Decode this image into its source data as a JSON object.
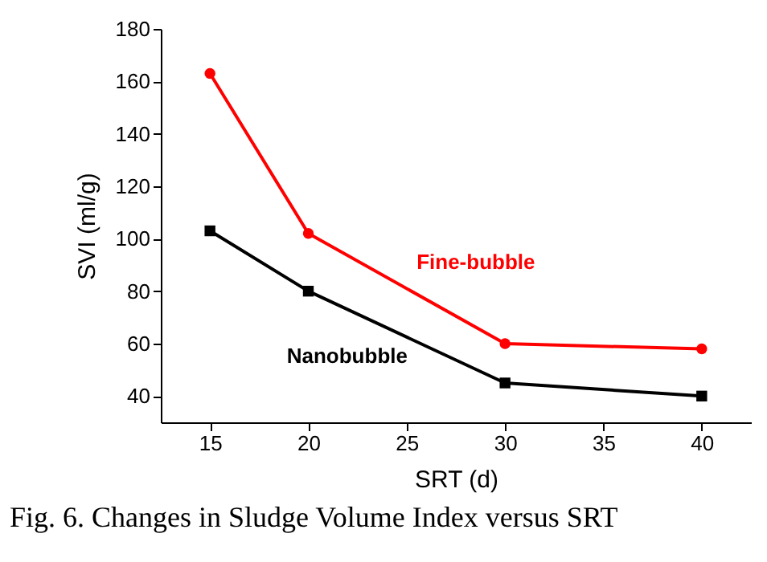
{
  "chart_data": {
    "type": "line",
    "x": [
      15,
      20,
      30,
      40
    ],
    "series": [
      {
        "name": "Fine-bubble",
        "color": "#ff0000",
        "marker": "circle",
        "values": [
          163,
          102,
          60,
          58
        ]
      },
      {
        "name": "Nanobubble",
        "color": "#000000",
        "marker": "square",
        "values": [
          103,
          80,
          45,
          40
        ]
      }
    ],
    "xlabel": "SRT (d)",
    "ylabel": "SVI (ml/g)",
    "xlim": [
      12.5,
      42.5
    ],
    "xticks": [
      15,
      20,
      25,
      30,
      35,
      40
    ],
    "ylim": [
      30,
      180
    ],
    "yticks": [
      40,
      60,
      80,
      100,
      120,
      140,
      160,
      180
    ],
    "grid": false,
    "legend": false,
    "line_style": "solid",
    "annotations": [
      "Fig. 6. Changes in Sludge Volume Index versus SRT"
    ]
  }
}
